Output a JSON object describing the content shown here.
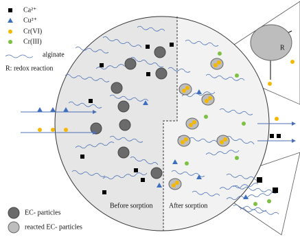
{
  "legend": {
    "items": [
      "Ca²⁺",
      "Cu²⁺",
      "Cr(VI)",
      "Cr(III)"
    ],
    "alginate": "alginate",
    "redox": "R: redox reaction"
  },
  "particles": [
    "EC- particles",
    "reacted EC- particles"
  ],
  "regions": [
    "Before sorption",
    "After sorption"
  ],
  "zoom": {
    "redox_label": "R"
  }
}
